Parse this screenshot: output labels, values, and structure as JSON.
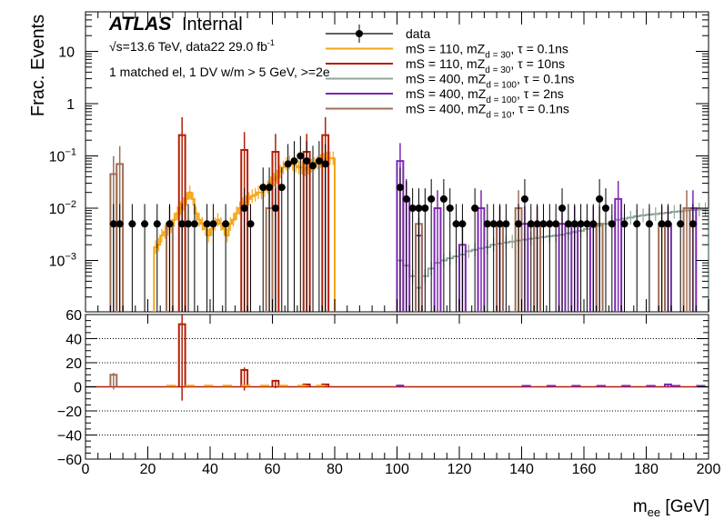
{
  "header": {
    "atlas_label": "ATLAS",
    "atlas_status": "Internal",
    "energy_line": "√s=13.6 TeV, data22 29.0 fb",
    "lumi_superscript": "-1",
    "selection_line": "1 matched el, 1 DV w/m > 5 GeV, >=2e"
  },
  "chart_data": [
    {
      "panel": "main",
      "type": "line",
      "ylabel": "Frac. Events",
      "yscale": "log",
      "ylim": [
        0.0001,
        60
      ],
      "xlim": [
        0,
        200
      ],
      "yticks": [
        "10^-3",
        "10^-2",
        "10^-1",
        "1",
        "10"
      ],
      "legend_position": "top-right",
      "series": [
        {
          "name": "data",
          "style": "points",
          "color": "#000000",
          "x": [
            9,
            11,
            15,
            19,
            23,
            27,
            31,
            33,
            35,
            39,
            41,
            45,
            51,
            53,
            57,
            59,
            61,
            63,
            65,
            67,
            69,
            71,
            73,
            75,
            77,
            101,
            103,
            105,
            107,
            109,
            111,
            115,
            117,
            119,
            121,
            125,
            129,
            131,
            133,
            135,
            139,
            141,
            143,
            145,
            147,
            149,
            151,
            153,
            155,
            157,
            159,
            161,
            163,
            165,
            167,
            169,
            173,
            177,
            181,
            185,
            187,
            191,
            195
          ],
          "y": [
            0.005,
            0.005,
            0.005,
            0.005,
            0.005,
            0.005,
            0.005,
            0.005,
            0.005,
            0.005,
            0.005,
            0.005,
            0.01,
            0.005,
            0.025,
            0.025,
            0.01,
            0.025,
            0.07,
            0.08,
            0.1,
            0.08,
            0.065,
            0.08,
            0.07,
            0.025,
            0.015,
            0.01,
            0.01,
            0.01,
            0.015,
            0.015,
            0.01,
            0.005,
            0.005,
            0.01,
            0.005,
            0.005,
            0.005,
            0.005,
            0.005,
            0.015,
            0.005,
            0.005,
            0.005,
            0.005,
            0.005,
            0.01,
            0.005,
            0.005,
            0.005,
            0.005,
            0.005,
            0.015,
            0.01,
            0.005,
            0.005,
            0.005,
            0.005,
            0.005,
            0.005,
            0.005,
            0.005
          ]
        },
        {
          "name": "mS = 110, mZ_d = 30, τ = 0.1ns",
          "style": "step",
          "color": "#f4a617",
          "bins": [
            22,
            80
          ],
          "y": [
            0.0018,
            0.002,
            0.003,
            0.0035,
            0.004,
            0.0045,
            0.006,
            0.008,
            0.01,
            0.012,
            0.015,
            0.02,
            0.015,
            0.008,
            0.006,
            0.005,
            0.004,
            0.003,
            0.004,
            0.005,
            0.006,
            0.005,
            0.004,
            0.003,
            0.005,
            0.006,
            0.008,
            0.01,
            0.012,
            0.013,
            0.015,
            0.017,
            0.018,
            0.02,
            0.02,
            0.022,
            0.025,
            0.03,
            0.035,
            0.04,
            0.05,
            0.06,
            0.07,
            0.075,
            0.07,
            0.065,
            0.06,
            0.06,
            0.055,
            0.06,
            0.065,
            0.07,
            0.075,
            0.08,
            0.085,
            0.09,
            0.09,
            0.09
          ]
        },
        {
          "name": "mS = 110, mZ_d = 30, τ = 10ns",
          "style": "step",
          "color": "#b41e06",
          "x": [
            31,
            51,
            61,
            71,
            77
          ],
          "y": [
            0.25,
            0.13,
            0.12,
            0.12,
            0.25
          ]
        },
        {
          "name": "mS = 400, mZ_d = 100, τ = 0.1ns",
          "style": "step",
          "color": "#8ea69a",
          "bins": [
            100,
            200
          ],
          "y": [
            0.001,
            0.0008,
            0.0005,
            0.0003,
            0.0005,
            0.0007,
            0.0009,
            0.001,
            0.0011,
            0.0012,
            0.0013,
            0.0015,
            0.0016,
            0.0017,
            0.0018,
            0.002,
            0.0021,
            0.0022,
            0.0023,
            0.0024,
            0.0025,
            0.0026,
            0.0027,
            0.0028,
            0.0029,
            0.003,
            0.0031,
            0.0033,
            0.0035,
            0.0037,
            0.004,
            0.0043,
            0.0046,
            0.005,
            0.0055,
            0.006,
            0.0063,
            0.0066,
            0.007,
            0.0073,
            0.0075,
            0.0077,
            0.008,
            0.0082,
            0.0085,
            0.0087,
            0.009,
            0.0092,
            0.0094,
            0.0096
          ]
        },
        {
          "name": "mS = 400, mZ_d = 100, τ = 2ns",
          "style": "step",
          "color": "#7e27b3",
          "x": [
            101,
            103,
            107,
            113,
            121,
            127,
            133,
            141,
            145,
            153,
            157,
            163,
            171,
            187,
            195
          ],
          "y": [
            0.08,
            0.015,
            0.003,
            0.01,
            0.002,
            0.01,
            0.005,
            0.005,
            0.005,
            0.005,
            0.005,
            0.005,
            0.015,
            0.005,
            0.01
          ]
        },
        {
          "name": "mS = 400, mZ_d = 10, τ = 0.1ns",
          "style": "step",
          "color": "#a06e55",
          "x": [
            9,
            11,
            27,
            59,
            107,
            133,
            139,
            145,
            165,
            185,
            193
          ],
          "y": [
            0.045,
            0.07,
            0.005,
            0.01,
            0.005,
            0.005,
            0.01,
            0.005,
            0.005,
            0.005,
            0.01
          ]
        }
      ]
    },
    {
      "panel": "ratio",
      "type": "line",
      "xlabel": "m_ee [GeV]",
      "ylim": [
        -60,
        60
      ],
      "xlim": [
        0,
        200
      ],
      "xticks": [
        0,
        20,
        40,
        60,
        80,
        100,
        120,
        140,
        160,
        180,
        200
      ],
      "yticks": [
        -60,
        -40,
        -20,
        0,
        20,
        40,
        60
      ],
      "grid": "dotted horizontal",
      "spikes": [
        {
          "x": 9,
          "y": 10,
          "color": "#a06e55"
        },
        {
          "x": 31,
          "y": 52,
          "color": "#b41e06"
        },
        {
          "x": 51,
          "y": 14,
          "color": "#b41e06"
        },
        {
          "x": 61,
          "y": 5,
          "color": "#b41e06"
        },
        {
          "x": 71,
          "y": 2,
          "color": "#b41e06"
        },
        {
          "x": 77,
          "y": 2,
          "color": "#b41e06"
        },
        {
          "x": 101,
          "y": 1,
          "color": "#7e27b3"
        },
        {
          "x": 187,
          "y": 2,
          "color": "#7e27b3"
        }
      ]
    }
  ]
}
